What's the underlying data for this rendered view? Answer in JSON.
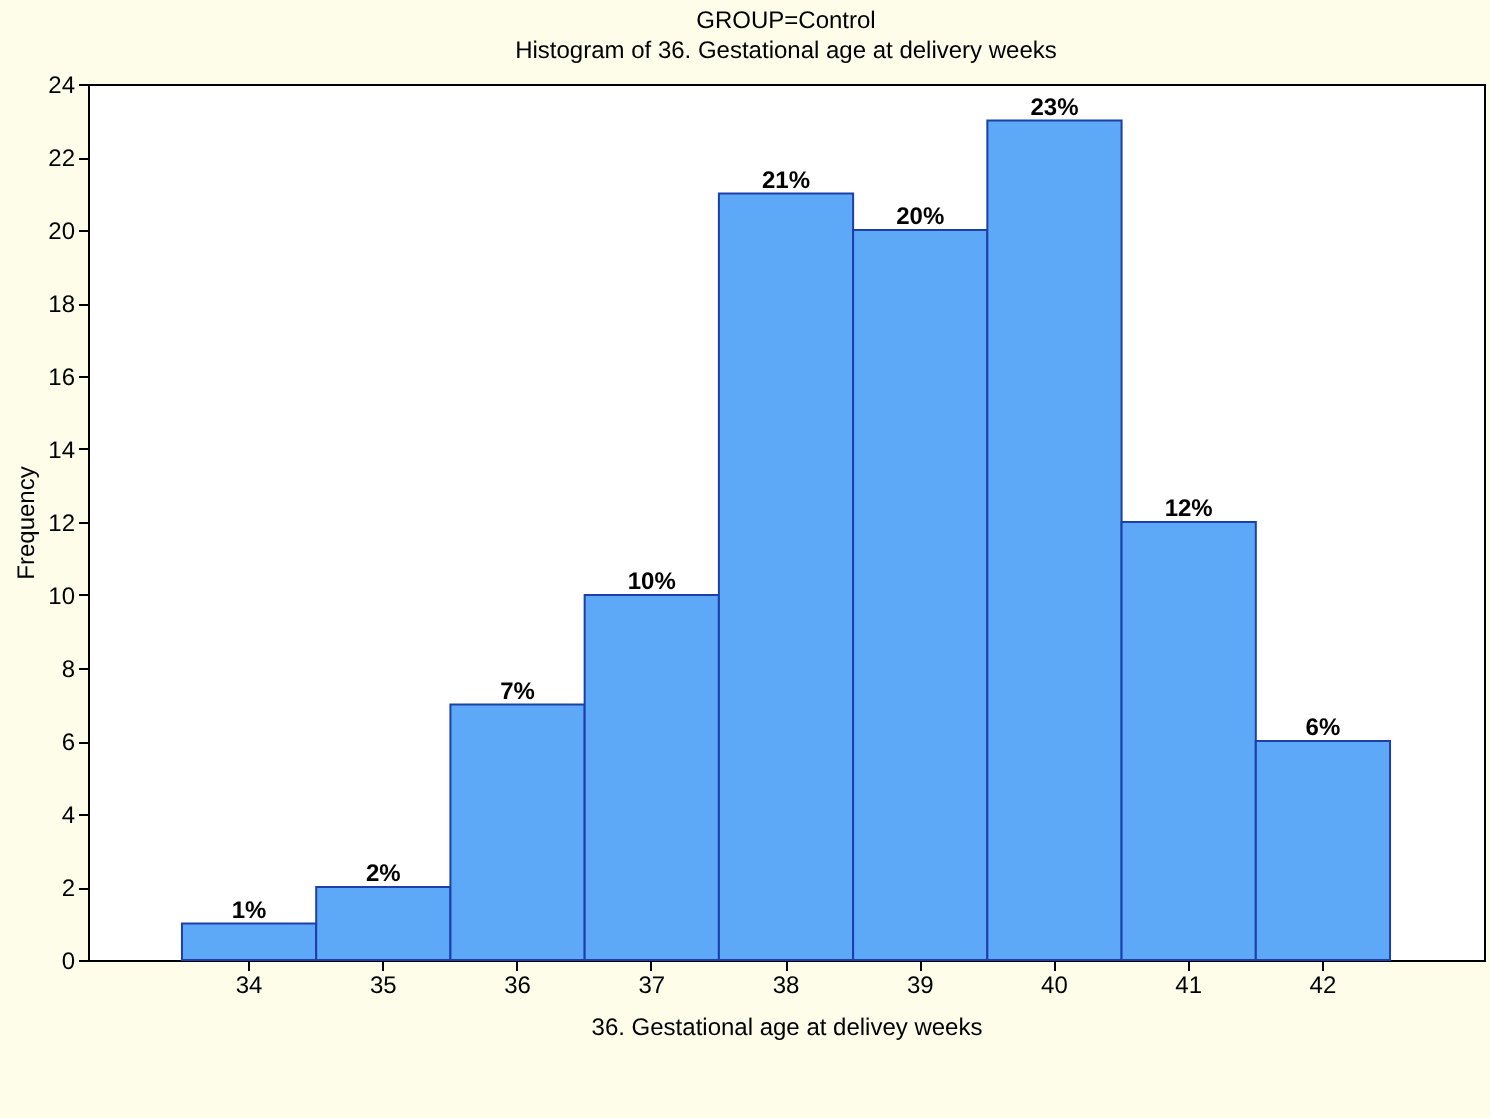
{
  "chart_data": {
    "type": "bar",
    "title": "GROUP=Control",
    "subtitle": "Histogram of 36. Gestational age at delivery weeks",
    "xlabel": "36. Gestational age at delivey weeks",
    "ylabel": "Frequency",
    "categories": [
      "34",
      "35",
      "36",
      "37",
      "38",
      "39",
      "40",
      "41",
      "42"
    ],
    "values": [
      1,
      2,
      7,
      10,
      21,
      20,
      23,
      12,
      6
    ],
    "value_labels": [
      "1%",
      "2%",
      "7%",
      "10%",
      "21%",
      "20%",
      "23%",
      "12%",
      "6%"
    ],
    "color": "#5ea8f8",
    "ylim": [
      0,
      24
    ],
    "yticks": [
      0,
      2,
      4,
      6,
      8,
      10,
      12,
      14,
      16,
      18,
      20,
      22,
      24
    ],
    "grid": false
  }
}
